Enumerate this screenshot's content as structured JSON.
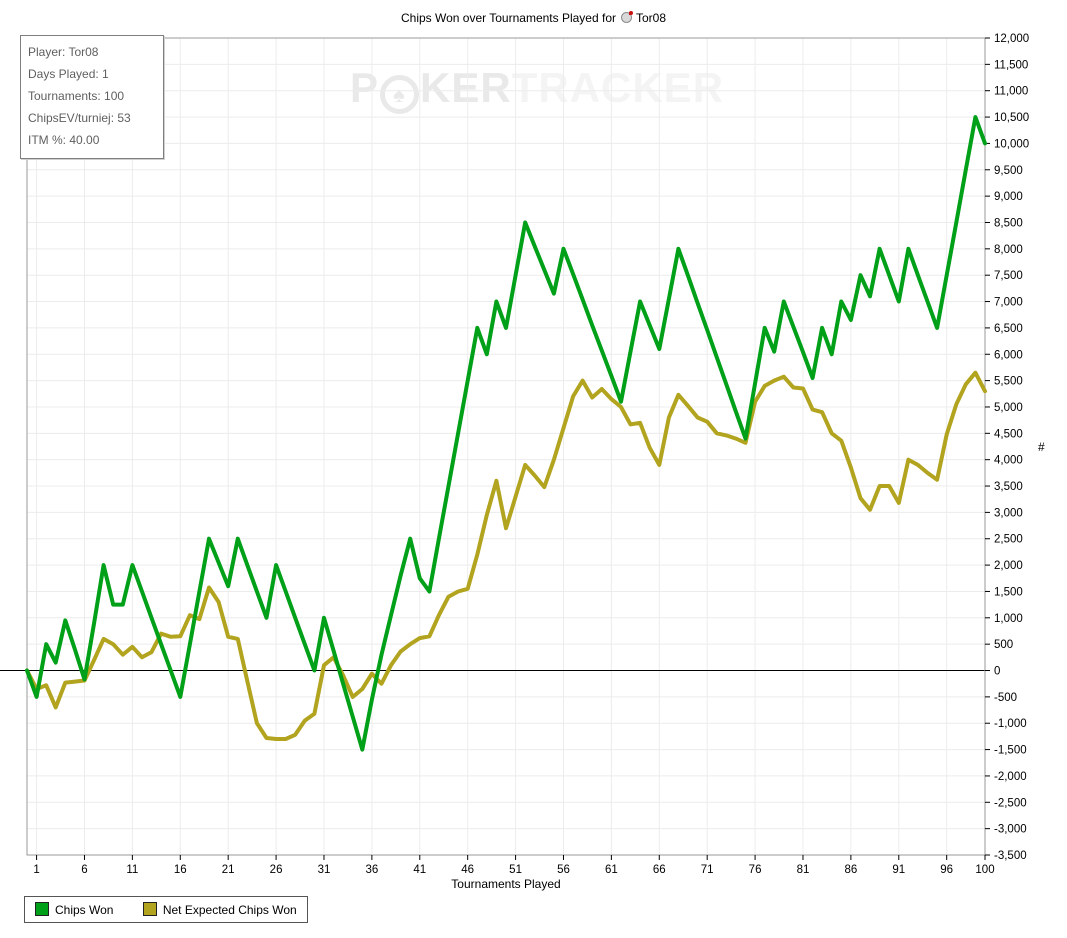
{
  "title": {
    "prefix": "Chips Won over Tournaments Played for",
    "player": "Tor08",
    "player_icon": "player-icon"
  },
  "watermark": {
    "p": "P",
    "chip_glyph": "♠",
    "ker": "KER",
    "tracker": "TRACKER"
  },
  "info_box": {
    "lines": [
      "Player: Tor08",
      "Days Played: 1",
      "Tournaments: 100",
      "ChipsEV/turniej: 53",
      "ITM %: 40.00"
    ]
  },
  "legend": [
    {
      "label": "Chips Won",
      "color": "#00a018"
    },
    {
      "label": "Net Expected Chips Won",
      "color": "#b2a41f"
    }
  ],
  "axes": {
    "x_label": "Tournaments Played",
    "y_label": "#",
    "x_ticks": [
      1,
      6,
      11,
      16,
      21,
      26,
      31,
      36,
      41,
      46,
      51,
      56,
      61,
      66,
      71,
      76,
      81,
      86,
      91,
      96,
      100
    ],
    "y_min": -3500,
    "y_max": 12000,
    "y_step": 500
  },
  "colors": {
    "grid": "#ececec",
    "plot_border": "#9a9a9a",
    "zero_line": "#000000",
    "green": "#00a018",
    "olive": "#b2a41f"
  },
  "chart_data": {
    "type": "line",
    "title": "Chips Won over Tournaments Played for Tor08",
    "xlabel": "Tournaments Played",
    "ylabel": "#",
    "xlim": [
      0,
      100
    ],
    "ylim": [
      -3500,
      12000
    ],
    "grid": true,
    "legend_position": "bottom-left",
    "x": [
      0,
      1,
      2,
      3,
      4,
      5,
      6,
      7,
      8,
      9,
      10,
      11,
      12,
      13,
      14,
      15,
      16,
      17,
      18,
      19,
      20,
      21,
      22,
      23,
      24,
      25,
      26,
      27,
      28,
      29,
      30,
      31,
      32,
      33,
      34,
      35,
      36,
      37,
      38,
      39,
      40,
      41,
      42,
      43,
      44,
      45,
      46,
      47,
      48,
      49,
      50,
      51,
      52,
      53,
      54,
      55,
      56,
      57,
      58,
      59,
      60,
      61,
      62,
      63,
      64,
      65,
      66,
      67,
      68,
      69,
      70,
      71,
      72,
      73,
      74,
      75,
      76,
      77,
      78,
      79,
      80,
      81,
      82,
      83,
      84,
      85,
      86,
      87,
      88,
      89,
      90,
      91,
      92,
      93,
      94,
      95,
      96,
      97,
      98,
      99,
      100
    ],
    "series": [
      {
        "name": "Chips Won",
        "color": "#00a018",
        "values": [
          0,
          -500,
          500,
          150,
          950,
          400,
          -170,
          900,
          2000,
          1250,
          1250,
          2000,
          1500,
          1000,
          500,
          0,
          -500,
          500,
          1500,
          2500,
          2050,
          1600,
          2500,
          2000,
          1500,
          1000,
          2000,
          1500,
          1000,
          500,
          0,
          1000,
          375,
          -250,
          -875,
          -1500,
          -550,
          300,
          1050,
          1800,
          2500,
          1750,
          1500,
          2500,
          3500,
          4500,
          5500,
          6500,
          6000,
          7000,
          6500,
          7500,
          8500,
          8050,
          7600,
          7150,
          8000,
          7520,
          7040,
          6550,
          6070,
          5590,
          5100,
          6050,
          7000,
          6550,
          6100,
          7050,
          8000,
          7490,
          6970,
          6460,
          5940,
          5430,
          4910,
          4400,
          5450,
          6500,
          6050,
          7000,
          6520,
          6040,
          5550,
          6500,
          6000,
          7000,
          6650,
          7500,
          7100,
          8000,
          7500,
          7000,
          8000,
          7500,
          7000,
          6500,
          7500,
          8500,
          9500,
          10500,
          10000
        ]
      },
      {
        "name": "Net Expected Chips Won",
        "color": "#b2a41f",
        "values": [
          0,
          -350,
          -280,
          -700,
          -230,
          -210,
          -190,
          200,
          600,
          500,
          300,
          450,
          250,
          350,
          700,
          640,
          650,
          1050,
          975,
          1575,
          1300,
          640,
          600,
          -200,
          -1000,
          -1280,
          -1300,
          -1300,
          -1220,
          -950,
          -820,
          100,
          250,
          -90,
          -500,
          -350,
          -60,
          -250,
          100,
          360,
          500,
          615,
          650,
          1050,
          1400,
          1500,
          1550,
          2200,
          2950,
          3600,
          2700,
          3300,
          3900,
          3700,
          3480,
          4000,
          4600,
          5200,
          5500,
          5180,
          5340,
          5150,
          5000,
          4670,
          4700,
          4225,
          3900,
          4800,
          5230,
          5020,
          4800,
          4720,
          4500,
          4460,
          4400,
          4320,
          5100,
          5400,
          5500,
          5575,
          5370,
          5350,
          4950,
          4900,
          4500,
          4360,
          3850,
          3270,
          3050,
          3500,
          3500,
          3180,
          4000,
          3900,
          3750,
          3620,
          4480,
          5050,
          5430,
          5650,
          5300
        ]
      }
    ]
  }
}
